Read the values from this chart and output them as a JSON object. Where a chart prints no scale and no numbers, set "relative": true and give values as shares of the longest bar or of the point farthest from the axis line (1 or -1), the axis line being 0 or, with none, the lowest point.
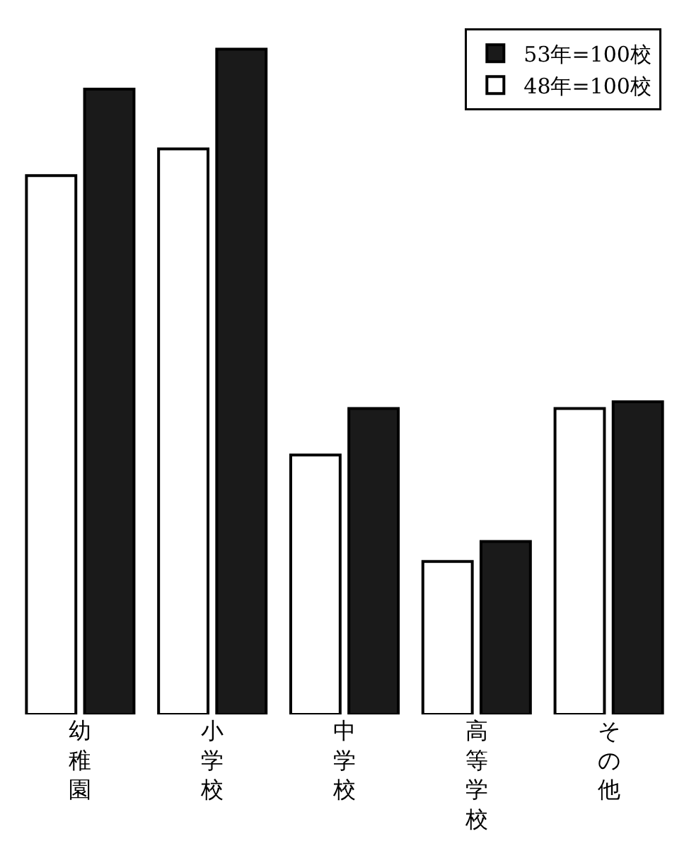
{
  "chart_data": {
    "type": "bar",
    "relative": true,
    "categories": [
      "幼稚園",
      "小学校",
      "中学校",
      "高等学校",
      "その他"
    ],
    "series": [
      {
        "name": "48年=100校",
        "color": "#ffffff",
        "values": [
          0.81,
          0.85,
          0.39,
          0.23,
          0.46
        ]
      },
      {
        "name": "53年=100校",
        "color": "#1a1a1a",
        "values": [
          0.94,
          1,
          0.46,
          0.26,
          0.47
        ]
      }
    ],
    "legend": "top right"
  }
}
